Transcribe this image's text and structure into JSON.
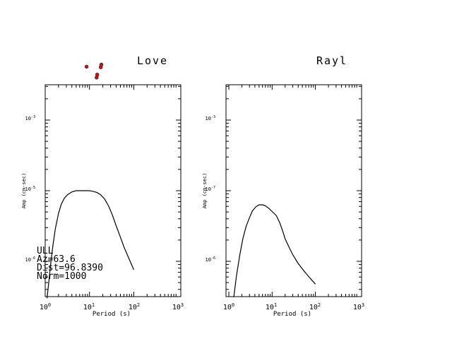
{
  "chart_data": [
    {
      "type": "line",
      "title": "Love",
      "xlabel": "Period (s)",
      "ylabel": "Amp (cm-sec)",
      "xscale": "log",
      "yscale": "log",
      "xlim": [
        1,
        1000
      ],
      "x_tick_labels": [
        "10^0",
        "10^1",
        "10^2",
        "10^3"
      ],
      "y_tick_labels": [
        "10^-6",
        "10^-5",
        "10^-3"
      ],
      "grid": false,
      "series": [
        {
          "kind": "line",
          "x": [
            1.1,
            1.2,
            1.35,
            1.5,
            1.7,
            2.0,
            2.3,
            2.7,
            3.2,
            4,
            5,
            6,
            8,
            10,
            12,
            15,
            18,
            22,
            27,
            33,
            40,
            50,
            60,
            75,
            100
          ],
          "y": [
            3e-07,
            5e-07,
            1e-06,
            1.7e-06,
            2.9e-06,
            4.8e-06,
            6.4e-06,
            7.8e-06,
            8.8e-06,
            9.6e-06,
            1e-05,
            1e-05,
            1e-05,
            1e-05,
            9.8e-06,
            9.4e-06,
            8.7e-06,
            7.6e-06,
            6.1e-06,
            4.5e-06,
            3.2e-06,
            2.2e-06,
            1.6e-06,
            1.15e-06,
            7.6e-07
          ]
        },
        {
          "kind": "scatter",
          "x": [
            8.6,
            14.5,
            15.0,
            18.0,
            18.5
          ],
          "y": [
            0.00057,
            0.0004,
            0.00044,
            0.00056,
            0.00061
          ]
        }
      ],
      "annotations": [
        "ULL",
        "Az=63.6",
        "Dist=96.8390",
        "Norm=1000"
      ]
    },
    {
      "type": "line",
      "title": "Rayl",
      "xlabel": "Period (s)",
      "ylabel": "Amp (cm-sec)",
      "xscale": "log",
      "yscale": "log",
      "xlim": [
        1,
        1000
      ],
      "x_tick_labels": [
        "10^0",
        "10^1",
        "10^2",
        "10^3"
      ],
      "y_tick_labels": [
        "10^-6",
        "10^-7",
        "10^-3"
      ],
      "grid": false,
      "series": [
        {
          "kind": "line",
          "x": [
            1.3,
            1.5,
            1.8,
            2.1,
            2.5,
            3.0,
            3.5,
            4.2,
            5,
            6,
            7,
            8.5,
            10,
            12.5,
            15,
            17.5,
            20,
            25,
            30,
            40,
            55,
            75,
            100
          ],
          "y": [
            3e-07,
            6e-07,
            1.2e-06,
            2e-06,
            3e-06,
            4e-06,
            5e-06,
            5.7e-06,
            6.1e-06,
            6.1e-06,
            5.9e-06,
            5.4e-06,
            4.9e-06,
            4.3e-06,
            3.4e-06,
            2.6e-06,
            2e-06,
            1.5e-06,
            1.2e-06,
            9e-07,
            7e-07,
            5.6e-07,
            4.6e-07
          ]
        }
      ]
    }
  ]
}
